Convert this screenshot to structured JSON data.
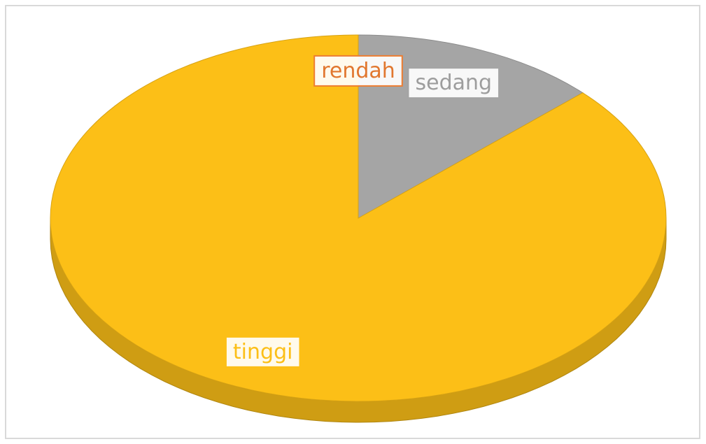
{
  "chart_data": {
    "type": "pie3d",
    "categories": [
      "rendah",
      "sedang",
      "tinggi"
    ],
    "values": [
      0,
      13,
      87
    ],
    "colors": [
      "#ed7d31",
      "#a5a5a5",
      "#fcbf17"
    ],
    "data_labels": true
  }
}
